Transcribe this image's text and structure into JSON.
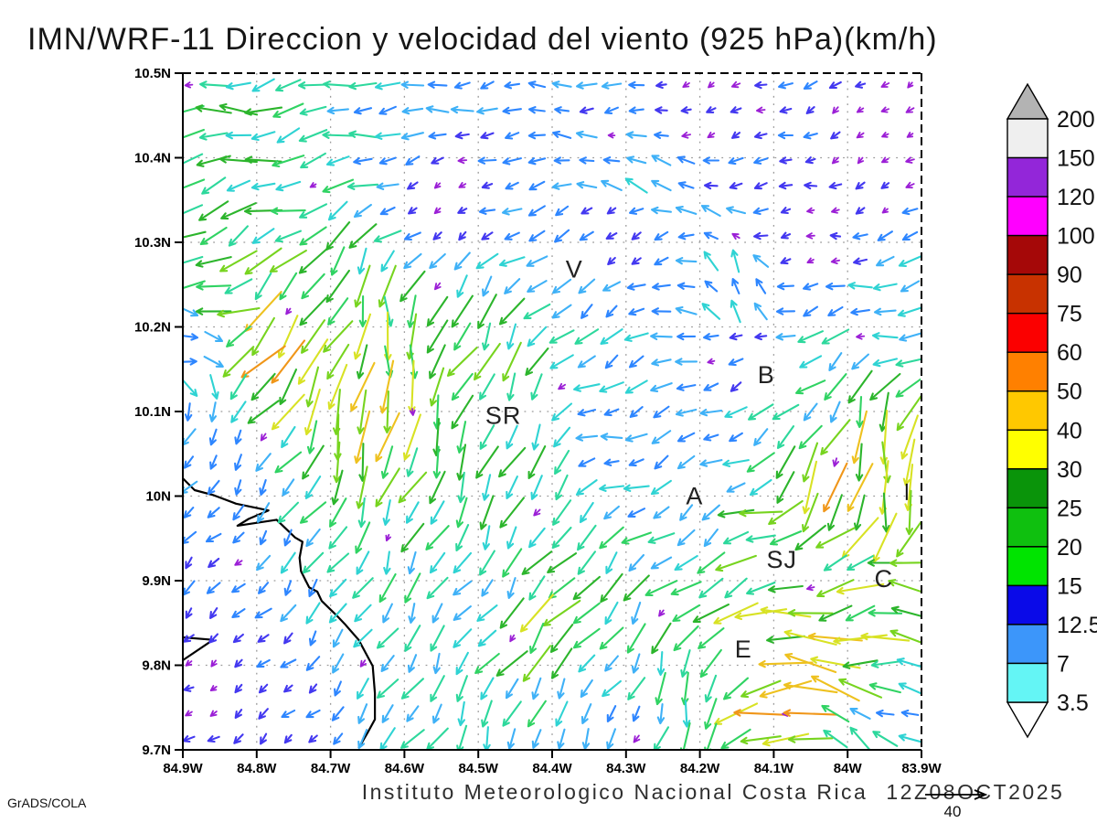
{
  "title": "IMN/WRF-11 Direccion y velocidad del viento (925 hPa)(km/h)",
  "footer": {
    "caption": "Instituto Meteorologico Nacional Costa Rica",
    "datetime": "12Z08OCT2025",
    "stamp": "GrADS/COLA"
  },
  "chart_data": {
    "type": "vector_field",
    "title": "IMN/WRF-11 Direccion y velocidad del viento (925 hPa)(km/h)",
    "units": "km/h",
    "level": "925 hPa",
    "x_axis": {
      "ticks": [
        84.9,
        84.8,
        84.7,
        84.6,
        84.5,
        84.4,
        84.3,
        84.2,
        84.1,
        84.0,
        83.9
      ],
      "tick_labels": [
        "84.9W",
        "84.8W",
        "84.7W",
        "84.6W",
        "84.5W",
        "84.4W",
        "84.3W",
        "84.2W",
        "84.1W",
        "84W",
        "83.9W"
      ]
    },
    "y_axis": {
      "ticks": [
        10.5,
        10.4,
        10.3,
        10.2,
        10.1,
        10.0,
        9.9,
        9.8,
        9.7
      ],
      "tick_labels": [
        "10.5N",
        "10.4N",
        "10.3N",
        "10.2N",
        "10.1N",
        "10N",
        "9.9N",
        "9.8N",
        "9.7N"
      ]
    },
    "grid": {
      "style": "dotted",
      "interval_deg": 0.1,
      "cols": 30,
      "rows": 27
    },
    "colorbar": {
      "levels": [
        3.5,
        7,
        12.5,
        15,
        20,
        25,
        30,
        40,
        50,
        60,
        75,
        90,
        100,
        120,
        150,
        200
      ],
      "colors": [
        "#64f5f5",
        "#3c96fa",
        "#0a0ae8",
        "#00e400",
        "#0fc00f",
        "#0a940a",
        "#ffff00",
        "#ffc800",
        "#ff8000",
        "#fb0000",
        "#c83200",
        "#a50808",
        "#ff00ff",
        "#9326d9",
        "#efefef"
      ],
      "under_color": "#ffffff",
      "over_color": "#b3b3b3"
    },
    "stations": [
      {
        "label": "V",
        "lon": 84.37,
        "lat": 10.268
      },
      {
        "label": "B",
        "lon": 84.11,
        "lat": 10.143
      },
      {
        "label": "SR",
        "lon": 84.466,
        "lat": 10.095
      },
      {
        "label": "A",
        "lon": 84.207,
        "lat": 10.0
      },
      {
        "label": "SJ",
        "lon": 84.089,
        "lat": 9.925
      },
      {
        "label": "C",
        "lon": 83.951,
        "lat": 9.902
      },
      {
        "label": "E",
        "lon": 84.141,
        "lat": 9.819
      }
    ],
    "edge_marker": {
      "lon": 83.92,
      "lat": 10.005
    },
    "reference_vector": {
      "speed": 40,
      "label": "40"
    },
    "coastlines": [
      [
        [
          84.9,
          10.021
        ],
        [
          84.884,
          10.007
        ],
        [
          84.858,
          10.001
        ],
        [
          84.828,
          9.991
        ],
        [
          84.784,
          9.983
        ],
        [
          84.811,
          9.973
        ],
        [
          84.826,
          9.965
        ],
        [
          84.773,
          9.972
        ],
        [
          84.748,
          9.951
        ],
        [
          84.738,
          9.946
        ],
        [
          84.742,
          9.927
        ],
        [
          84.74,
          9.911
        ],
        [
          84.729,
          9.892
        ],
        [
          84.718,
          9.887
        ],
        [
          84.712,
          9.876
        ],
        [
          84.692,
          9.859
        ],
        [
          84.681,
          9.849
        ],
        [
          84.662,
          9.83
        ],
        [
          84.643,
          9.799
        ],
        [
          84.64,
          9.767
        ],
        [
          84.64,
          9.736
        ],
        [
          84.65,
          9.72
        ],
        [
          84.662,
          9.702
        ]
      ],
      [
        [
          84.9,
          9.833
        ],
        [
          84.859,
          9.83
        ],
        [
          84.9,
          9.806
        ]
      ]
    ],
    "field_colors": {
      "thresholds": [
        4.5,
        8,
        12,
        15,
        18,
        21,
        24,
        28,
        33,
        40,
        47,
        55,
        63
      ],
      "colors": [
        "#9b1fd6",
        "#4338f0",
        "#2e86ff",
        "#3fb1f7",
        "#2fd3d3",
        "#2dd89c",
        "#30d363",
        "#2cb52c",
        "#77d41f",
        "#d8e224",
        "#eec11f",
        "#f09619",
        "#f0661a",
        "#ef2f21"
      ]
    },
    "wind_features": [
      [
        84.85,
        10.46,
        265,
        22
      ],
      [
        84.6,
        10.45,
        268,
        14
      ],
      [
        84.42,
        10.45,
        270,
        10
      ],
      [
        84.85,
        10.23,
        260,
        26
      ],
      [
        84.75,
        10.37,
        255,
        20
      ],
      [
        84.2,
        10.46,
        250,
        4
      ],
      [
        83.95,
        10.42,
        235,
        3
      ],
      [
        84.05,
        10.3,
        255,
        3
      ],
      [
        84.3,
        10.32,
        215,
        4
      ],
      [
        84.55,
        10.35,
        240,
        3
      ],
      [
        84.28,
        10.36,
        315,
        16
      ],
      [
        84.15,
        10.24,
        335,
        13
      ],
      [
        83.94,
        10.21,
        260,
        15
      ],
      [
        84.88,
        10.19,
        100,
        9
      ],
      [
        84.77,
        10.18,
        225,
        44
      ],
      [
        84.72,
        10.23,
        210,
        24
      ],
      [
        84.63,
        10.1,
        180,
        40
      ],
      [
        84.62,
        10.19,
        185,
        28
      ],
      [
        84.55,
        10.07,
        195,
        24
      ],
      [
        84.45,
        10.02,
        200,
        22
      ],
      [
        84.5,
        10.13,
        210,
        26
      ],
      [
        84.84,
        10.05,
        210,
        9
      ],
      [
        84.85,
        9.93,
        225,
        9
      ],
      [
        84.87,
        9.78,
        235,
        4
      ],
      [
        84.75,
        9.74,
        225,
        7
      ],
      [
        84.6,
        9.79,
        210,
        16
      ],
      [
        84.5,
        9.88,
        220,
        14
      ],
      [
        84.41,
        9.84,
        225,
        30
      ],
      [
        84.35,
        9.77,
        215,
        13
      ],
      [
        84.45,
        9.72,
        195,
        17
      ],
      [
        84.55,
        9.96,
        205,
        20
      ],
      [
        84.3,
        9.72,
        195,
        12
      ],
      [
        84.2,
        9.77,
        190,
        20
      ],
      [
        84.32,
        10.06,
        255,
        11
      ],
      [
        84.18,
        10.07,
        245,
        11
      ],
      [
        84.2,
        9.99,
        230,
        12
      ],
      [
        84.12,
        10.16,
        250,
        4
      ],
      [
        84.08,
        10.13,
        260,
        24
      ],
      [
        84.05,
        10.1,
        205,
        15
      ],
      [
        84.02,
        10.02,
        185,
        40
      ],
      [
        83.96,
        9.97,
        180,
        34
      ],
      [
        83.95,
        10.06,
        190,
        35
      ],
      [
        84.12,
        9.95,
        255,
        26
      ],
      [
        84.02,
        9.92,
        255,
        22
      ],
      [
        83.93,
        9.9,
        280,
        30
      ],
      [
        84.1,
        9.82,
        265,
        30
      ],
      [
        84.05,
        9.79,
        278,
        46
      ],
      [
        84.07,
        9.765,
        272,
        56
      ],
      [
        83.92,
        9.74,
        295,
        12
      ],
      [
        84.0,
        9.72,
        300,
        16
      ]
    ]
  }
}
